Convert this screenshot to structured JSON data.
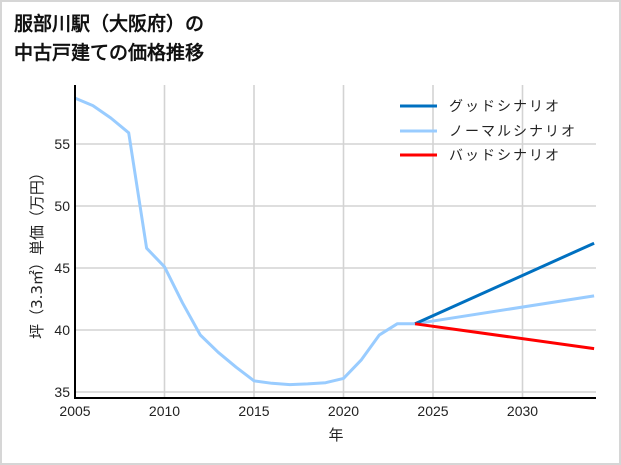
{
  "title": {
    "line1": "服部川駅（大阪府）の",
    "line2": "中古戸建ての価格推移"
  },
  "chart_data": {
    "type": "line",
    "title": "服部川駅（大阪府）の中古戸建ての価格推移",
    "xlabel": "年",
    "ylabel": "坪（3.3㎡）単価（万円）",
    "xlim": [
      2005,
      2034
    ],
    "ylim": [
      34.5,
      59.8
    ],
    "x_ticks": [
      2005,
      2010,
      2015,
      2020,
      2025,
      2030
    ],
    "y_ticks": [
      35,
      40,
      45,
      50,
      55
    ],
    "grid": true,
    "legend_position": "upper right",
    "series": [
      {
        "name": "グッドシナリオ",
        "color": "#0070c0",
        "x": [
          2024,
          2034
        ],
        "values": [
          40.5,
          47.0
        ]
      },
      {
        "name": "ノーマルシナリオ",
        "color": "#99ccff",
        "x": [
          2005,
          2006,
          2007,
          2008,
          2009,
          2010,
          2011,
          2012,
          2013,
          2014,
          2015,
          2016,
          2017,
          2018,
          2019,
          2020,
          2021,
          2022,
          2023,
          2024,
          2034
        ],
        "values": [
          58.7,
          58.1,
          57.1,
          55.9,
          46.6,
          45.1,
          42.2,
          39.6,
          38.2,
          37.0,
          35.9,
          35.7,
          35.6,
          35.65,
          35.75,
          36.1,
          37.6,
          39.6,
          40.5,
          40.5,
          42.75
        ]
      },
      {
        "name": "バッドシナリオ",
        "color": "#ff0000",
        "x": [
          2024,
          2034
        ],
        "values": [
          40.5,
          38.5
        ]
      }
    ]
  },
  "legend": {
    "good": "グッドシナリオ",
    "normal": "ノーマルシナリオ",
    "bad": "バッドシナリオ"
  },
  "axes": {
    "xlabel": "年",
    "ylabel": "坪（3.3㎡）単価（万円）",
    "x_ticks": [
      "2005",
      "2010",
      "2015",
      "2020",
      "2025",
      "2030"
    ],
    "y_ticks": [
      "35",
      "40",
      "45",
      "50",
      "55"
    ]
  }
}
